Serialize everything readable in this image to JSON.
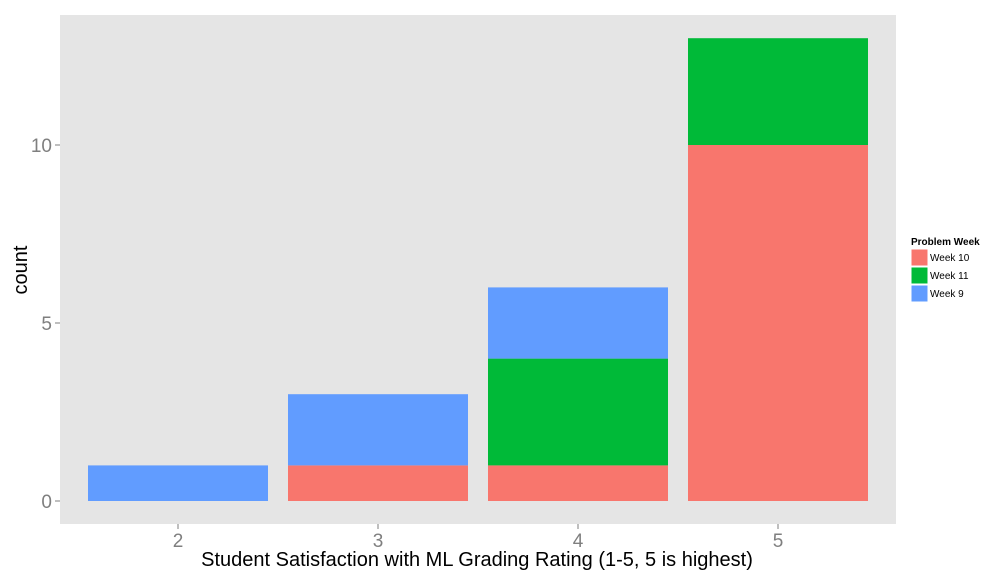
{
  "chart_data": {
    "type": "bar",
    "stacked": true,
    "title": "",
    "xlabel": "Student Satisfaction with ML Grading Rating (1-5, 5 is highest)",
    "ylabel": "count",
    "categories": [
      "2",
      "3",
      "4",
      "5"
    ],
    "ylim": [
      0,
      13.6
    ],
    "yticks": [
      0,
      5,
      10
    ],
    "grid": false,
    "legend": {
      "title": "Problem Week",
      "position": "right"
    },
    "series": [
      {
        "name": "Week 10",
        "color": "#F8766D",
        "values": [
          0,
          1,
          1,
          10
        ]
      },
      {
        "name": "Week 11",
        "color": "#00BA38",
        "values": [
          0,
          0,
          3,
          3
        ]
      },
      {
        "name": "Week 9",
        "color": "#619CFF",
        "values": [
          1,
          2,
          2,
          0
        ]
      }
    ],
    "panel_background": "#E5E5E5"
  }
}
